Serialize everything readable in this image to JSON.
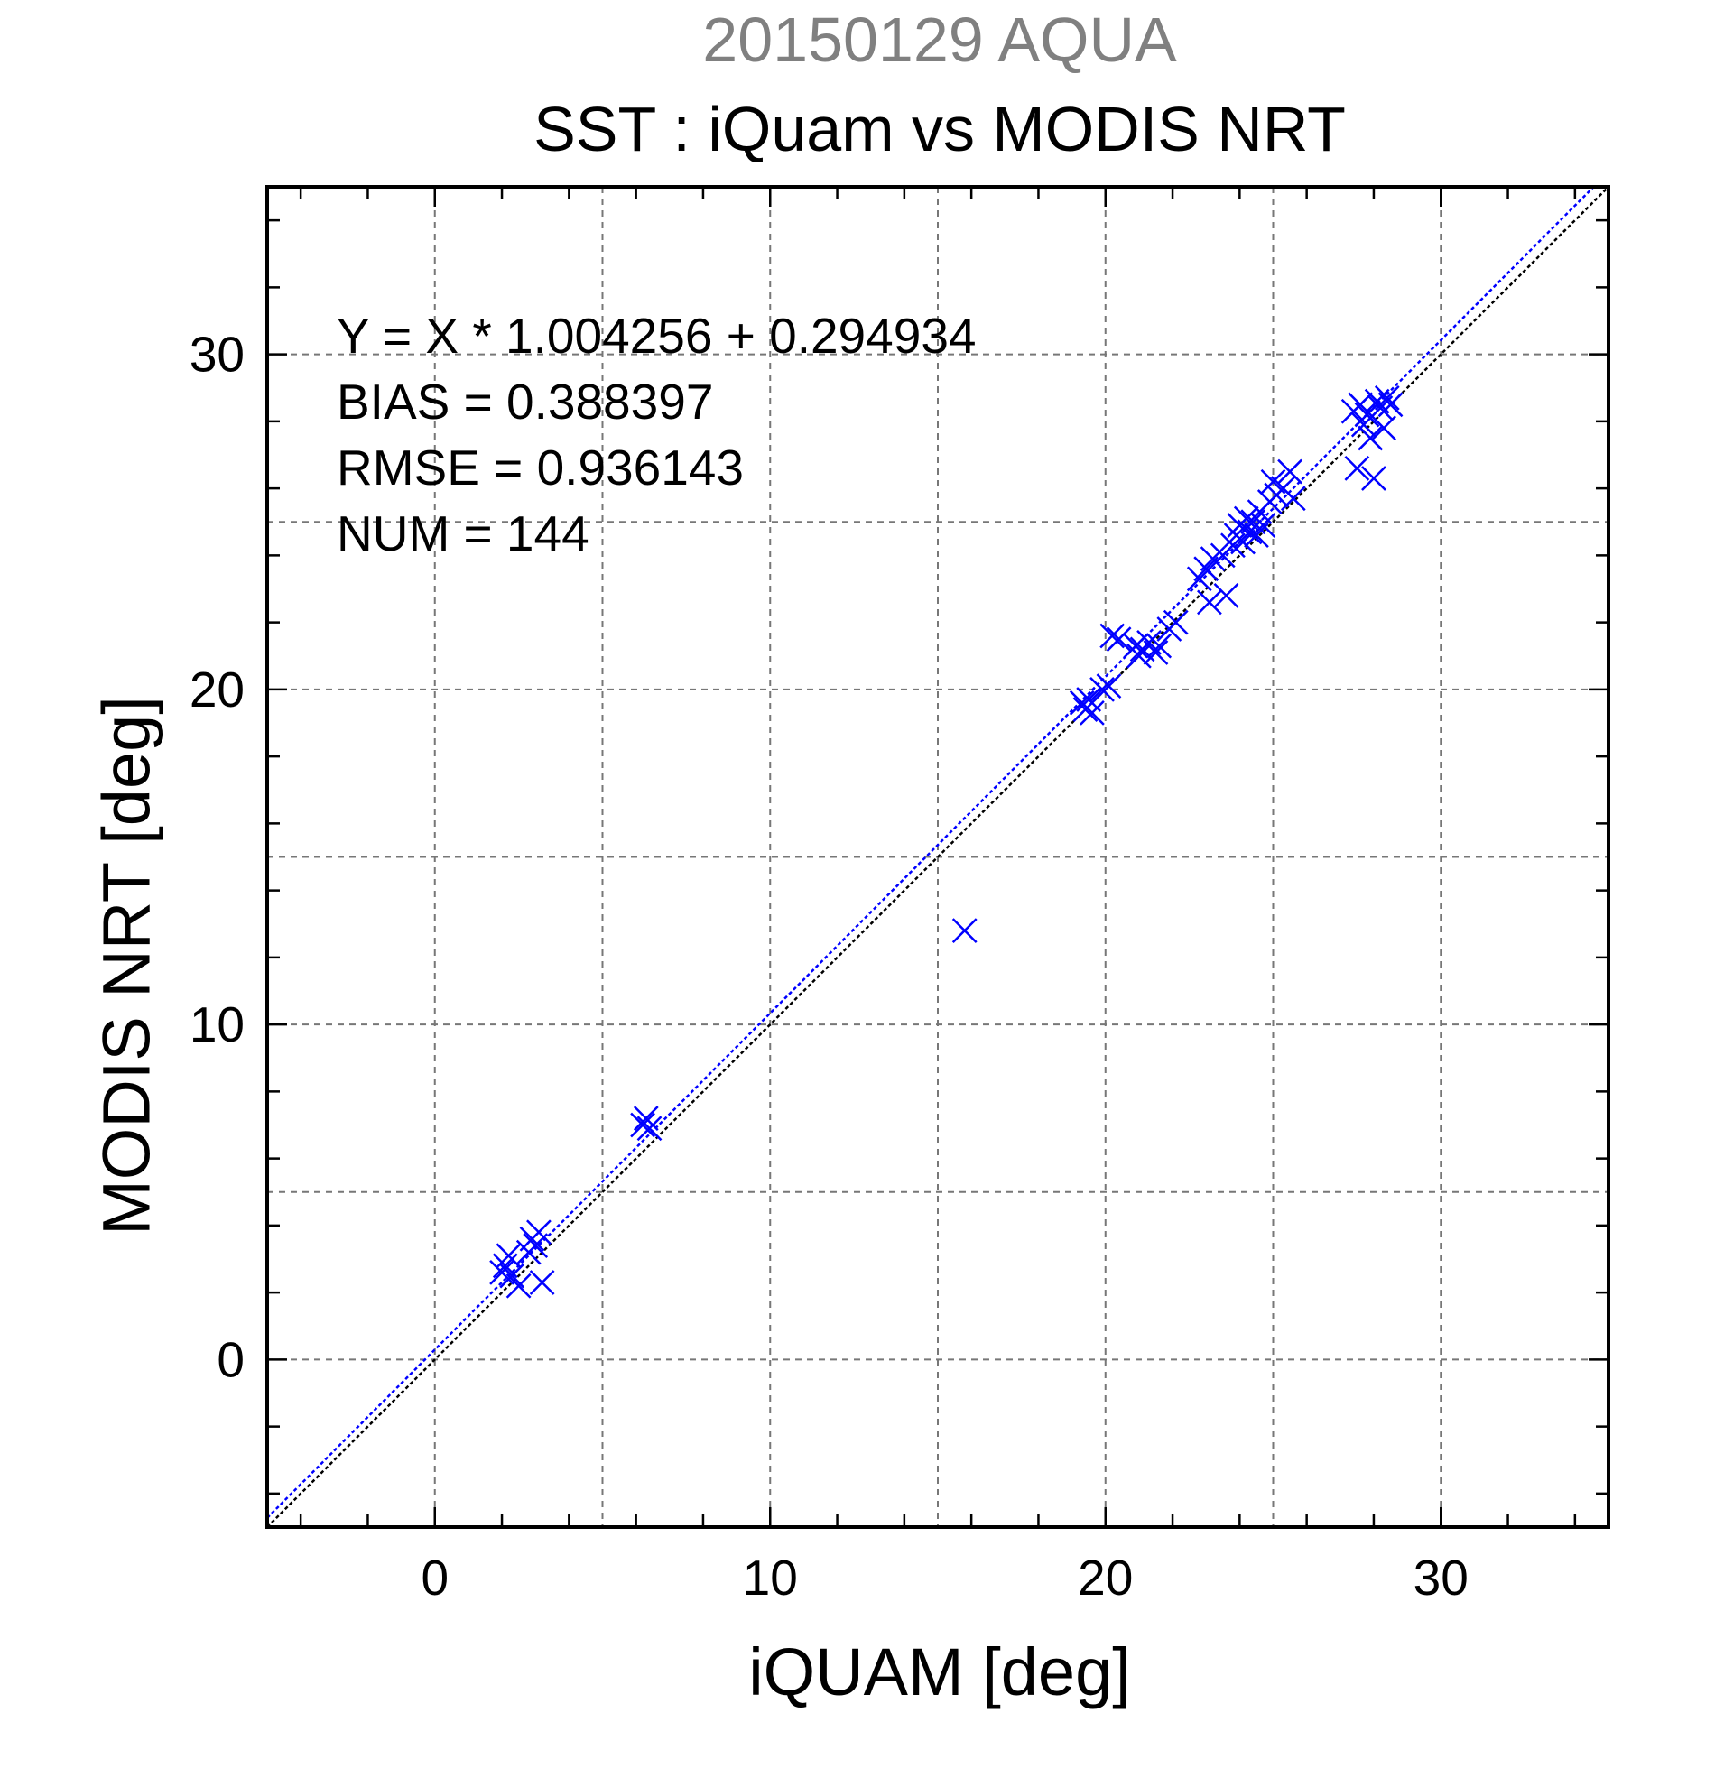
{
  "chart_data": {
    "type": "scatter",
    "title": "20150129 AQUA",
    "subtitle": "SST : iQuam vs MODIS NRT",
    "xlabel": "iQUAM [deg]",
    "ylabel": "MODIS NRT [deg]",
    "xlim": [
      -5,
      35
    ],
    "ylim": [
      -5,
      35
    ],
    "xticks": [
      "0",
      "10",
      "20",
      "30"
    ],
    "yticks": [
      "0",
      "10",
      "20",
      "30"
    ],
    "grid": true,
    "stats": [
      "Y = X * 1.004256 + 0.294934",
      "BIAS = 0.388397",
      "RMSE = 0.936143",
      "NUM = 144"
    ],
    "lines": [
      {
        "kind": "one-to-one",
        "color": "#000000",
        "style": "dotted"
      },
      {
        "kind": "regression",
        "slope": 1.004256,
        "intercept": 0.294934,
        "color": "#0000ff",
        "style": "dotted"
      }
    ],
    "marker": {
      "shape": "x",
      "color": "#0000ff"
    },
    "points": [
      [
        2.0,
        2.6
      ],
      [
        2.1,
        2.8
      ],
      [
        2.2,
        3.1
      ],
      [
        2.3,
        2.5
      ],
      [
        2.5,
        2.2
      ],
      [
        2.8,
        3.2
      ],
      [
        3.0,
        3.4
      ],
      [
        3.1,
        3.8
      ],
      [
        3.2,
        2.3
      ],
      [
        2.9,
        3.6
      ],
      [
        6.2,
        7.0
      ],
      [
        6.3,
        7.2
      ],
      [
        6.4,
        6.9
      ],
      [
        15.8,
        12.8
      ],
      [
        19.3,
        19.6
      ],
      [
        19.4,
        19.4
      ],
      [
        19.5,
        19.7
      ],
      [
        19.6,
        19.3
      ],
      [
        19.9,
        20.0
      ],
      [
        20.1,
        20.1
      ],
      [
        20.2,
        21.6
      ],
      [
        20.4,
        21.5
      ],
      [
        20.9,
        21.3
      ],
      [
        21.0,
        21.0
      ],
      [
        21.1,
        21.2
      ],
      [
        21.3,
        21.4
      ],
      [
        21.5,
        21.1
      ],
      [
        21.6,
        21.3
      ],
      [
        21.9,
        21.8
      ],
      [
        22.1,
        22.0
      ],
      [
        22.8,
        23.3
      ],
      [
        23.0,
        23.6
      ],
      [
        23.1,
        22.6
      ],
      [
        23.2,
        23.9
      ],
      [
        23.5,
        24.0
      ],
      [
        23.6,
        22.8
      ],
      [
        23.8,
        24.3
      ],
      [
        23.9,
        24.6
      ],
      [
        24.0,
        24.9
      ],
      [
        24.1,
        24.4
      ],
      [
        24.2,
        25.1
      ],
      [
        24.3,
        24.7
      ],
      [
        24.4,
        25.0
      ],
      [
        24.5,
        24.6
      ],
      [
        24.6,
        25.3
      ],
      [
        24.7,
        24.9
      ],
      [
        24.9,
        25.6
      ],
      [
        25.0,
        26.2
      ],
      [
        25.1,
        25.8
      ],
      [
        25.3,
        26.0
      ],
      [
        25.5,
        26.5
      ],
      [
        25.6,
        25.7
      ],
      [
        27.4,
        28.3
      ],
      [
        27.5,
        26.6
      ],
      [
        27.6,
        28.5
      ],
      [
        27.7,
        27.9
      ],
      [
        27.8,
        28.2
      ],
      [
        27.9,
        27.5
      ],
      [
        28.0,
        26.3
      ],
      [
        28.1,
        28.6
      ],
      [
        28.2,
        28.4
      ],
      [
        28.3,
        27.8
      ],
      [
        28.4,
        28.7
      ],
      [
        28.5,
        28.5
      ]
    ]
  }
}
